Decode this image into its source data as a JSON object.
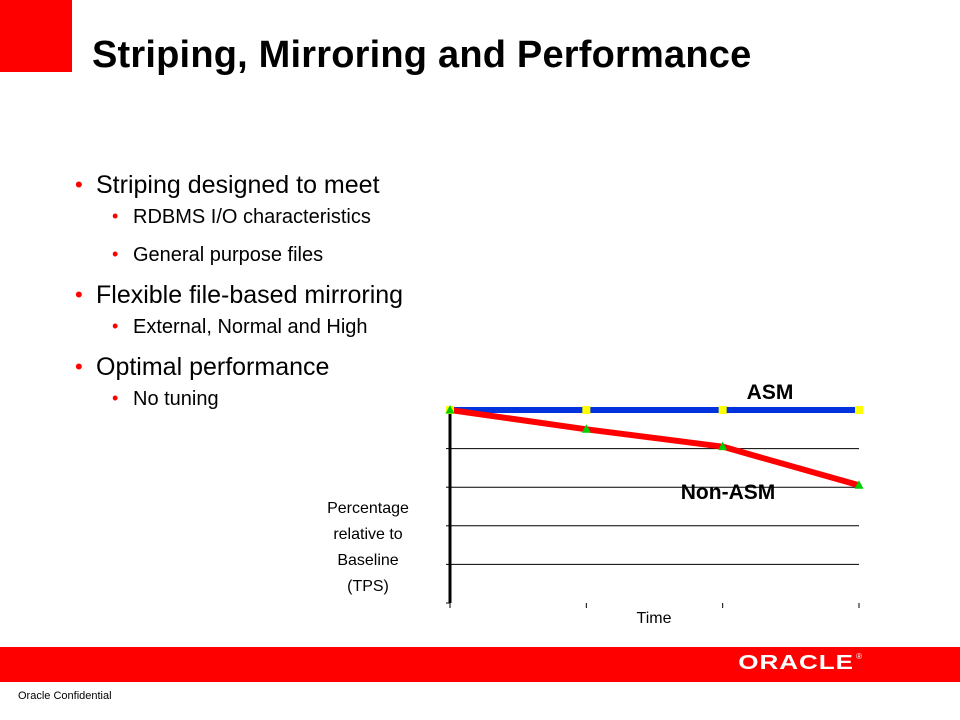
{
  "slide": {
    "title": "Striping, Mirroring and Performance",
    "accent_color": "#ff0000"
  },
  "bullets": [
    {
      "text": "Striping designed to meet",
      "subs": [
        "RDBMS I/O characteristics",
        "General purpose files"
      ]
    },
    {
      "text": "Flexible file-based mirroring",
      "subs": [
        "External, Normal and High"
      ]
    },
    {
      "text": "Optimal performance",
      "subs": [
        "No tuning"
      ]
    }
  ],
  "chart_data": {
    "type": "line",
    "x": [
      0,
      1,
      2,
      3
    ],
    "xlabel": "Time",
    "ylabel": "Percentage relative to Baseline (TPS)",
    "ylabel_lines": [
      "Percentage",
      "relative to",
      "Baseline",
      "(TPS)"
    ],
    "ylim": [
      0,
      5
    ],
    "series": [
      {
        "name": "ASM",
        "values": [
          5,
          5,
          5,
          5
        ],
        "color": "#0033dd",
        "marker_color": "#ffff00"
      },
      {
        "name": "Non-ASM",
        "values": [
          5,
          4.5,
          4.05,
          3.05
        ],
        "color": "#ff0000",
        "marker_color": "#00cc00"
      }
    ],
    "grid": true
  },
  "footer": {
    "logo_text": "ORACLE",
    "logo_reg": "®",
    "confidential": "Oracle Confidential",
    "bar_color": "#ff0000"
  }
}
